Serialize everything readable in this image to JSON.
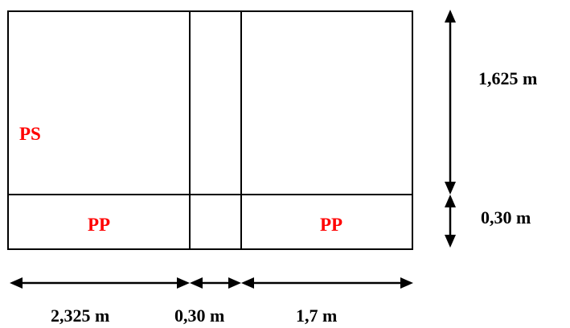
{
  "labels": {
    "section_left": "PS",
    "beam_left": "PP",
    "beam_right": "PP"
  },
  "dimensions": {
    "width_left": "2,325 m",
    "width_middle": "0,30 m",
    "width_right": "1,7 m",
    "height_top": "1,625 m",
    "height_bottom": "0,30 m"
  },
  "colors": {
    "label_color": "#ff0000",
    "line_color": "#000000"
  }
}
